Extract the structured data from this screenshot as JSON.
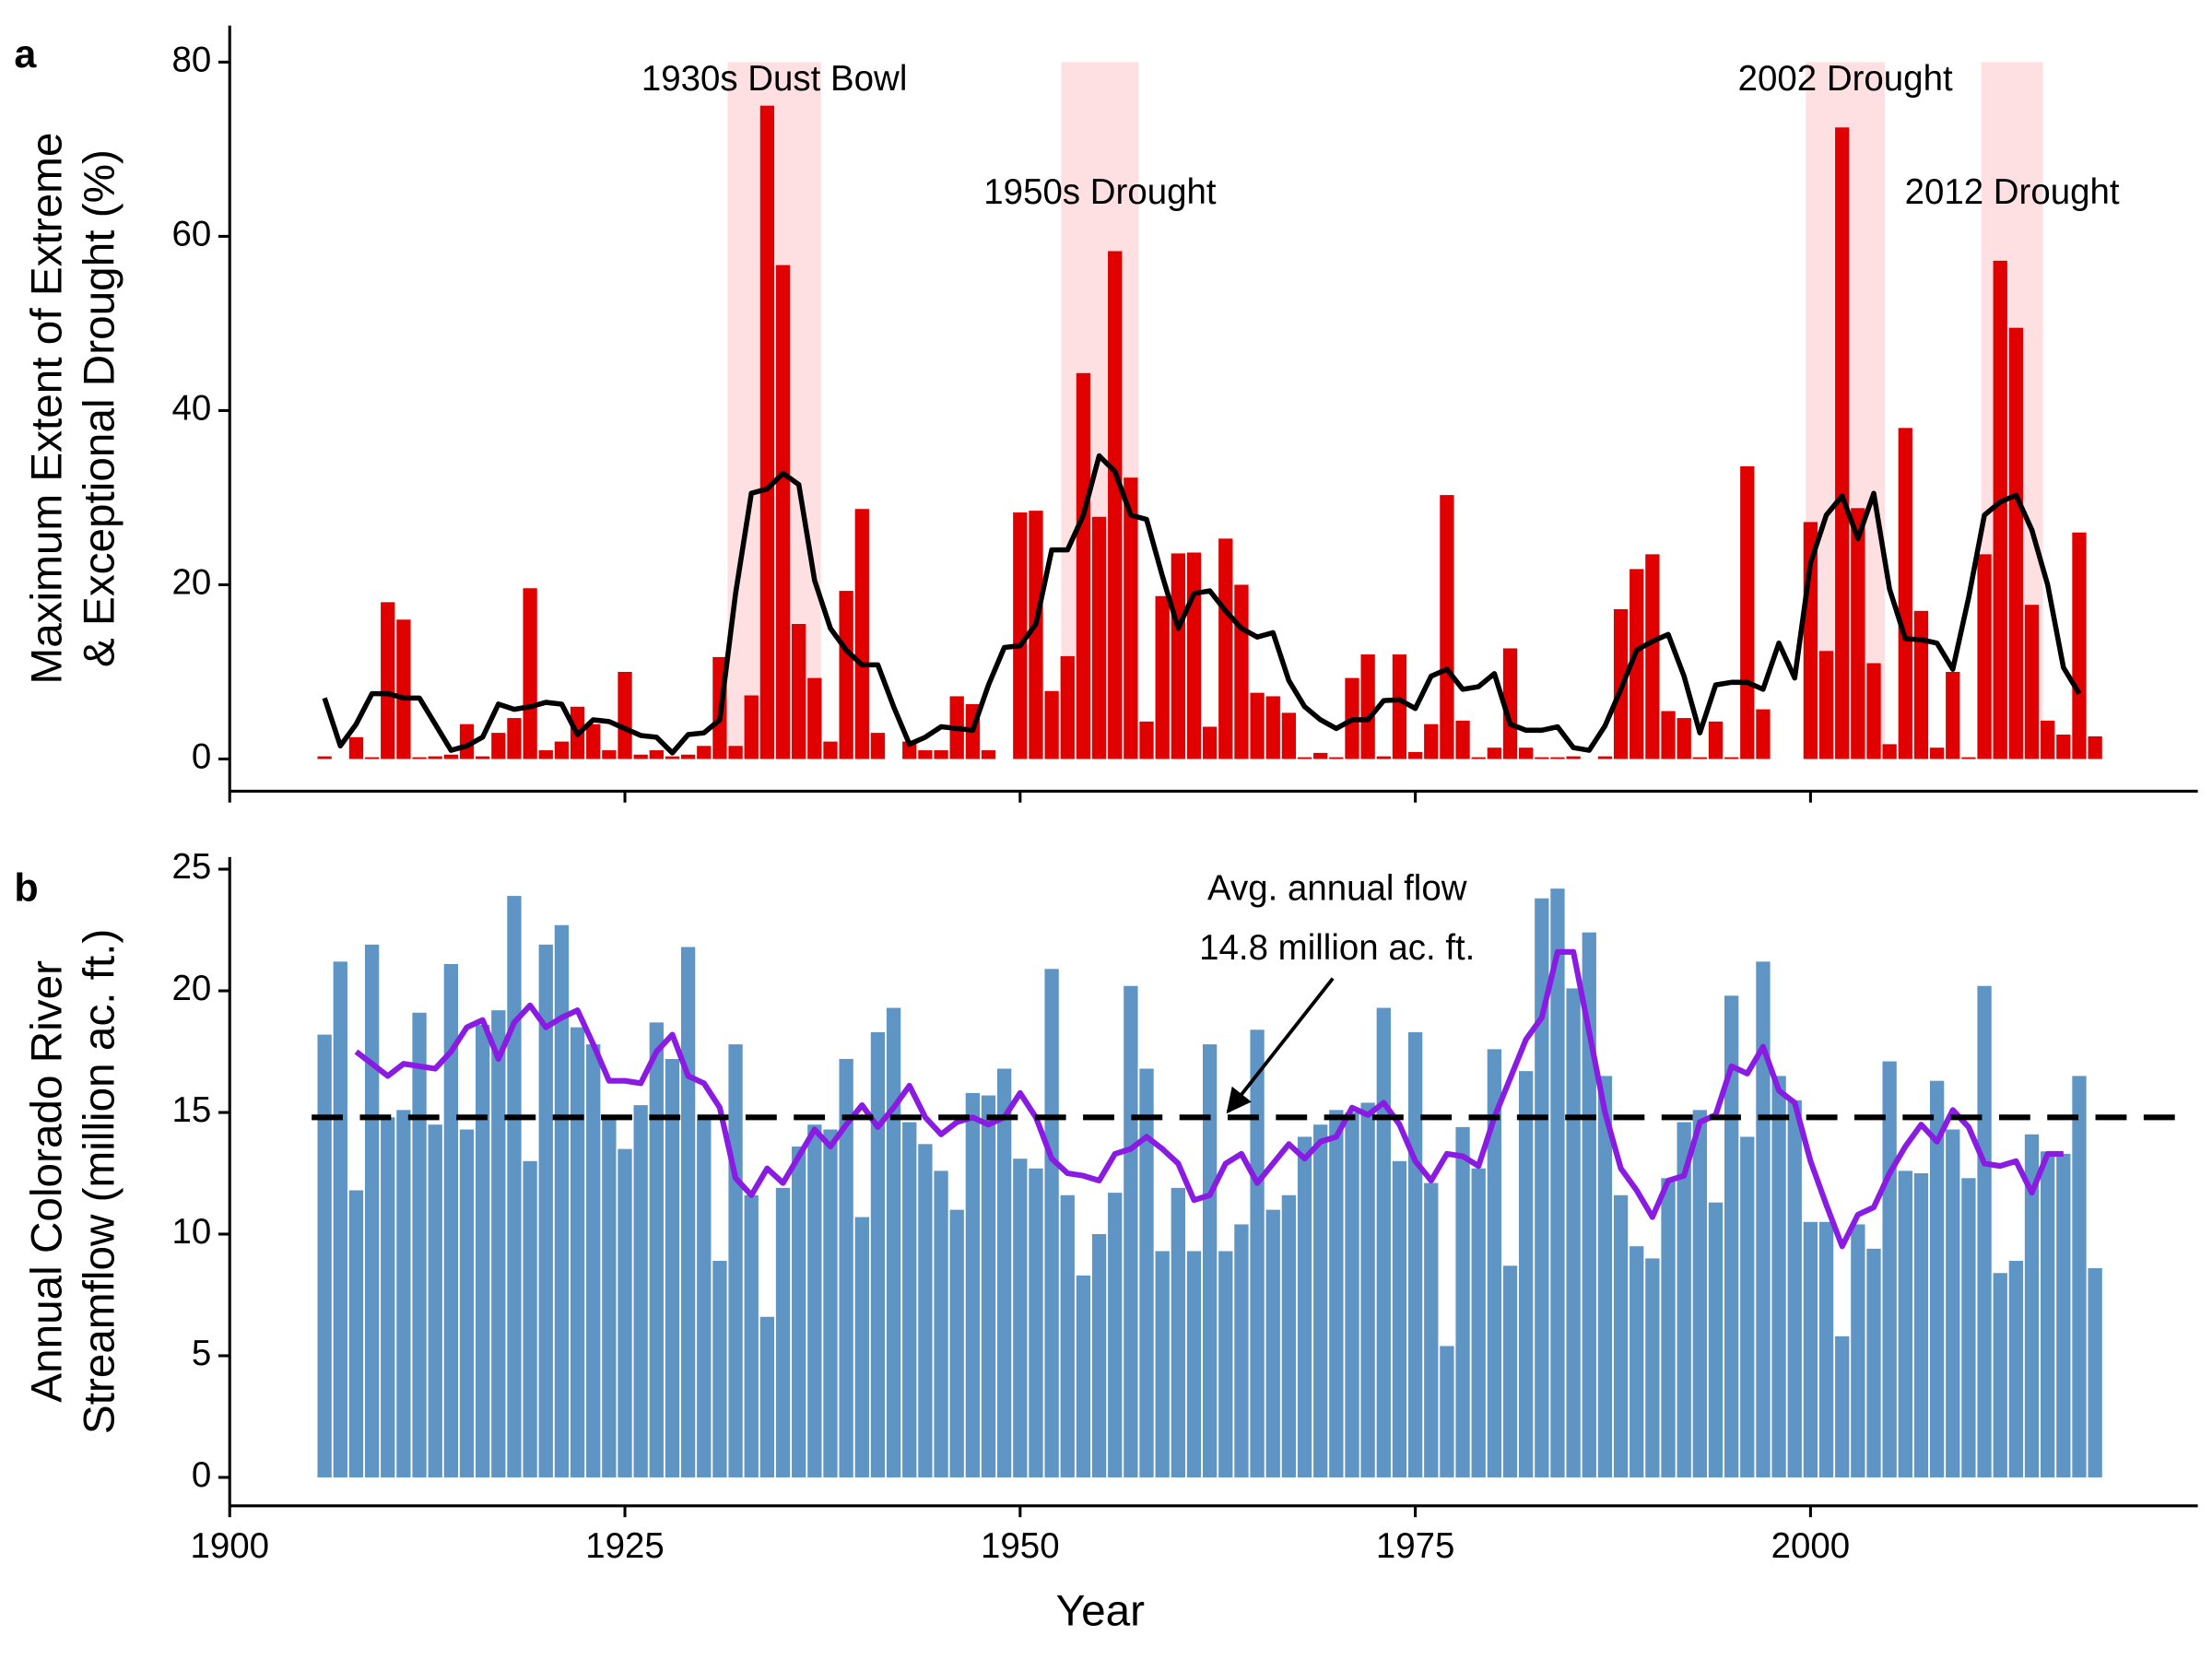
{
  "chart_data": [
    {
      "type": "bar",
      "panel": "a",
      "ylabel": [
        "Maximum Extent of Extreme",
        "& Exceptional Drought (%)"
      ],
      "x": [
        1906,
        1907,
        1908,
        1909,
        1910,
        1911,
        1912,
        1913,
        1914,
        1915,
        1916,
        1917,
        1918,
        1919,
        1920,
        1921,
        1922,
        1923,
        1924,
        1925,
        1926,
        1927,
        1928,
        1929,
        1930,
        1931,
        1932,
        1933,
        1934,
        1935,
        1936,
        1937,
        1938,
        1939,
        1940,
        1941,
        1942,
        1943,
        1944,
        1945,
        1946,
        1947,
        1948,
        1949,
        1950,
        1951,
        1952,
        1953,
        1954,
        1955,
        1956,
        1957,
        1958,
        1959,
        1960,
        1961,
        1962,
        1963,
        1964,
        1965,
        1966,
        1967,
        1968,
        1969,
        1970,
        1971,
        1972,
        1973,
        1974,
        1975,
        1976,
        1977,
        1978,
        1979,
        1980,
        1981,
        1982,
        1983,
        1984,
        1985,
        1986,
        1987,
        1988,
        1989,
        1990,
        1991,
        1992,
        1993,
        1994,
        1995,
        1996,
        1997,
        1998,
        1999,
        2000,
        2001,
        2002,
        2003,
        2004,
        2005,
        2006,
        2007,
        2008,
        2009,
        2010,
        2011,
        2012,
        2013,
        2014,
        2015,
        2016,
        2017,
        2018
      ],
      "series": [
        {
          "type": "bar",
          "color": "#e00000",
          "values": [
            0.3,
            0,
            2.5,
            0.2,
            18,
            16,
            0.2,
            0.3,
            0.5,
            4,
            0.3,
            3,
            4.7,
            19.6,
            1,
            2,
            6,
            4,
            1,
            10,
            0.5,
            1,
            0.3,
            0.5,
            1.5,
            11.7,
            1.5,
            7.3,
            75,
            56.7,
            15.5,
            9.3,
            2,
            19.3,
            28.7,
            3,
            0,
            2,
            1,
            1,
            7.2,
            6.3,
            1,
            0,
            28.3,
            28.5,
            7.8,
            11.8,
            44.3,
            27.8,
            58.3,
            32.3,
            4.3,
            18.7,
            23.6,
            23.7,
            3.7,
            25.3,
            20,
            7.6,
            7.2,
            5.3,
            0.2,
            0.7,
            0.2,
            9.3,
            12,
            0.3,
            12,
            0.8,
            4,
            30.3,
            4.4,
            0.2,
            1.3,
            12.7,
            1.3,
            0.2,
            0.2,
            0.3,
            0,
            0.3,
            17.2,
            21.8,
            23.5,
            5.5,
            4.7,
            0.2,
            4.3,
            0.2,
            33.6,
            5.7,
            0,
            0,
            27.2,
            12.4,
            72.5,
            28.8,
            11,
            1.7,
            38,
            17,
            1.3,
            10,
            0.2,
            23.5,
            57.2,
            49.5,
            17.7,
            4.4,
            2.8,
            26,
            2.6
          ]
        },
        {
          "type": "line",
          "color": "#000000",
          "values": [
            7,
            1.5,
            4,
            7.5,
            7.5,
            7,
            7,
            4,
            1,
            1.5,
            2.5,
            6.3,
            5.7,
            6,
            6.5,
            6.3,
            2.8,
            4.5,
            4.3,
            3.5,
            2.7,
            2.5,
            0.7,
            2.8,
            3,
            4.5,
            19,
            30.5,
            31,
            32.8,
            31.5,
            20.5,
            15,
            12.5,
            10.8,
            10.8,
            6,
            1.7,
            2.5,
            3.7,
            3.5,
            3.3,
            8.5,
            12.8,
            13,
            15.5,
            24,
            24,
            28,
            34.8,
            33,
            28,
            27.5,
            21,
            15,
            19,
            19.3,
            17,
            15,
            14,
            14.5,
            9,
            6,
            4.5,
            3.5,
            4.5,
            4.5,
            6.7,
            6.8,
            5.8,
            9.5,
            10.3,
            8,
            8.3,
            9.8,
            4,
            3.3,
            3.3,
            3.7,
            1.3,
            1,
            3.8,
            8,
            12.5,
            13.5,
            14.3,
            9.5,
            3,
            8.5,
            8.8,
            8.8,
            8,
            13.3,
            9.3,
            22.5,
            28,
            30.2,
            25.3,
            30.5,
            19.5,
            13.8,
            13.7,
            13.3,
            10.3,
            18.5,
            28,
            29.5,
            30.3,
            26.3,
            20,
            10.5,
            7.5,
            null
          ]
        }
      ],
      "highlights": [
        {
          "start": 1931.5,
          "end": 1937.4,
          "label": "1930s Dust Bowl"
        },
        {
          "start": 1952.6,
          "end": 1957.5,
          "label": "1950s Drought"
        },
        {
          "start": 1999.7,
          "end": 2004.7,
          "label": "2002 Drought"
        },
        {
          "start": 2010.8,
          "end": 2014.7,
          "label": "2012 Drought"
        }
      ],
      "xlim": [
        1900,
        2024.5
      ],
      "ylim": [
        -3.7,
        84.2
      ],
      "yticks": [
        0,
        20,
        40,
        60,
        80
      ]
    },
    {
      "type": "bar",
      "panel": "b",
      "ylabel": [
        "Annual Colorado River",
        "Streamflow (million ac. ft.)"
      ],
      "xlabel": "Year",
      "x": [
        1906,
        1907,
        1908,
        1909,
        1910,
        1911,
        1912,
        1913,
        1914,
        1915,
        1916,
        1917,
        1918,
        1919,
        1920,
        1921,
        1922,
        1923,
        1924,
        1925,
        1926,
        1927,
        1928,
        1929,
        1930,
        1931,
        1932,
        1933,
        1934,
        1935,
        1936,
        1937,
        1938,
        1939,
        1940,
        1941,
        1942,
        1943,
        1944,
        1945,
        1946,
        1947,
        1948,
        1949,
        1950,
        1951,
        1952,
        1953,
        1954,
        1955,
        1956,
        1957,
        1958,
        1959,
        1960,
        1961,
        1962,
        1963,
        1964,
        1965,
        1966,
        1967,
        1968,
        1969,
        1970,
        1971,
        1972,
        1973,
        1974,
        1975,
        1976,
        1977,
        1978,
        1979,
        1980,
        1981,
        1982,
        1983,
        1984,
        1985,
        1986,
        1987,
        1988,
        1989,
        1990,
        1991,
        1992,
        1993,
        1994,
        1995,
        1996,
        1997,
        1998,
        1999,
        2000,
        2001,
        2002,
        2003,
        2004,
        2005,
        2006,
        2007,
        2008,
        2009,
        2010,
        2011,
        2012,
        2013,
        2014,
        2015,
        2016,
        2017,
        2018
      ],
      "series": [
        {
          "type": "bar",
          "color": "#5e95c4",
          "values": [
            18.2,
            21.2,
            11.8,
            21.9,
            14.8,
            15.1,
            19.1,
            14.5,
            21.1,
            14.3,
            18.6,
            19.2,
            23.9,
            13.0,
            21.9,
            22.7,
            18.5,
            17.8,
            14.7,
            13.5,
            15.3,
            18.7,
            17.2,
            21.8,
            14.7,
            8.9,
            17.8,
            11.6,
            6.6,
            11.9,
            13.6,
            14.5,
            14.3,
            17.2,
            10.7,
            18.3,
            19.3,
            14.6,
            13.7,
            12.6,
            11.0,
            15.8,
            15.7,
            16.8,
            13.1,
            12.7,
            20.9,
            11.6,
            8.3,
            10.0,
            11.7,
            20.2,
            16.8,
            9.3,
            11.9,
            9.3,
            17.8,
            9.3,
            10.4,
            18.4,
            11.0,
            11.6,
            14.0,
            14.5,
            15.1,
            15.0,
            15.4,
            19.3,
            13.0,
            18.3,
            12.1,
            5.4,
            14.4,
            12.7,
            17.6,
            8.7,
            16.7,
            23.8,
            24.2,
            20.1,
            22.4,
            16.5,
            11.6,
            9.5,
            9.0,
            12.3,
            14.6,
            15.1,
            11.3,
            19.8,
            14.0,
            21.2,
            16.5,
            15.5,
            10.5,
            10.5,
            5.8,
            10.4,
            9.4,
            17.1,
            12.6,
            12.5,
            16.3,
            14.3,
            12.3,
            20.2,
            8.4,
            8.9,
            14.1,
            13.4,
            13.3,
            16.5,
            8.6
          ]
        },
        {
          "type": "line",
          "color": "#8a1be2",
          "values": [
            null,
            null,
            17.5,
            17,
            16.5,
            17,
            16.9,
            16.8,
            17.5,
            18.5,
            18.8,
            17.2,
            18.7,
            19.4,
            18.5,
            18.9,
            19.2,
            17.8,
            16.3,
            16.3,
            16.2,
            17.5,
            18.2,
            16.5,
            16.2,
            15.2,
            12.3,
            11.6,
            12.7,
            12.1,
            13.2,
            14.3,
            13.6,
            14.5,
            15.3,
            14.4,
            15.2,
            16.1,
            14.8,
            14.1,
            14.6,
            14.8,
            14.5,
            14.8,
            15.8,
            14.8,
            13.1,
            12.5,
            12.4,
            12.2,
            13.3,
            13.5,
            14,
            13.5,
            12.9,
            11.4,
            11.6,
            12.9,
            13.3,
            12.1,
            12.9,
            13.7,
            13.1,
            13.8,
            14,
            15.2,
            14.9,
            15.4,
            14.5,
            13,
            12.2,
            13.3,
            13.2,
            12.8,
            14.8,
            16.4,
            18,
            18.9,
            21.6,
            21.6,
            18.3,
            15,
            12.7,
            11.8,
            10.7,
            12.2,
            12.4,
            14.6,
            14.9,
            16.9,
            16.6,
            17.7,
            15.9,
            15.4,
            13,
            11.2,
            9.5,
            10.8,
            11.1,
            12.5,
            13.6,
            14.5,
            13.8,
            15.1,
            14.4,
            12.9,
            12.8,
            13,
            11.7,
            13.3,
            13.3,
            null,
            null
          ]
        }
      ],
      "hline": 14.8,
      "annotation": [
        "Avg. annual flow",
        "14.8 million ac. ft."
      ],
      "xlim": [
        1900,
        2024.5
      ],
      "xticks": [
        1900,
        1925,
        1950,
        1975,
        2000
      ],
      "ylim": [
        -1.17,
        25.5
      ],
      "yticks": [
        0,
        5,
        10,
        15,
        20,
        25
      ]
    }
  ]
}
